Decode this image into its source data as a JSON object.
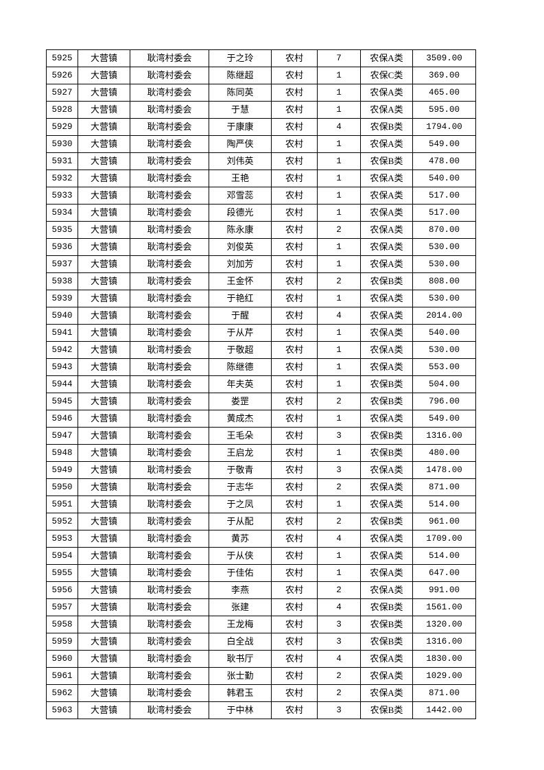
{
  "table": {
    "rows": [
      [
        "5925",
        "大营镇",
        "耿湾村委会",
        "于之玲",
        "农村",
        "7",
        "农保A类",
        "3509.00"
      ],
      [
        "5926",
        "大营镇",
        "耿湾村委会",
        "陈继超",
        "农村",
        "1",
        "农保C类",
        "369.00"
      ],
      [
        "5927",
        "大营镇",
        "耿湾村委会",
        "陈同英",
        "农村",
        "1",
        "农保A类",
        "465.00"
      ],
      [
        "5928",
        "大营镇",
        "耿湾村委会",
        "于慧",
        "农村",
        "1",
        "农保A类",
        "595.00"
      ],
      [
        "5929",
        "大营镇",
        "耿湾村委会",
        "于康康",
        "农村",
        "4",
        "农保B类",
        "1794.00"
      ],
      [
        "5930",
        "大营镇",
        "耿湾村委会",
        "陶严侠",
        "农村",
        "1",
        "农保A类",
        "549.00"
      ],
      [
        "5931",
        "大营镇",
        "耿湾村委会",
        "刘伟英",
        "农村",
        "1",
        "农保B类",
        "478.00"
      ],
      [
        "5932",
        "大营镇",
        "耿湾村委会",
        "王艳",
        "农村",
        "1",
        "农保A类",
        "540.00"
      ],
      [
        "5933",
        "大营镇",
        "耿湾村委会",
        "邓雪蕊",
        "农村",
        "1",
        "农保A类",
        "517.00"
      ],
      [
        "5934",
        "大营镇",
        "耿湾村委会",
        "段德光",
        "农村",
        "1",
        "农保A类",
        "517.00"
      ],
      [
        "5935",
        "大营镇",
        "耿湾村委会",
        "陈永康",
        "农村",
        "2",
        "农保A类",
        "870.00"
      ],
      [
        "5936",
        "大营镇",
        "耿湾村委会",
        "刘俊英",
        "农村",
        "1",
        "农保A类",
        "530.00"
      ],
      [
        "5937",
        "大营镇",
        "耿湾村委会",
        "刘加芳",
        "农村",
        "1",
        "农保A类",
        "530.00"
      ],
      [
        "5938",
        "大营镇",
        "耿湾村委会",
        "王金怀",
        "农村",
        "2",
        "农保B类",
        "808.00"
      ],
      [
        "5939",
        "大营镇",
        "耿湾村委会",
        "于艳红",
        "农村",
        "1",
        "农保A类",
        "530.00"
      ],
      [
        "5940",
        "大营镇",
        "耿湾村委会",
        "于醒",
        "农村",
        "4",
        "农保A类",
        "2014.00"
      ],
      [
        "5941",
        "大营镇",
        "耿湾村委会",
        "于从芹",
        "农村",
        "1",
        "农保A类",
        "540.00"
      ],
      [
        "5942",
        "大营镇",
        "耿湾村委会",
        "于敬超",
        "农村",
        "1",
        "农保A类",
        "530.00"
      ],
      [
        "5943",
        "大营镇",
        "耿湾村委会",
        "陈继德",
        "农村",
        "1",
        "农保A类",
        "553.00"
      ],
      [
        "5944",
        "大营镇",
        "耿湾村委会",
        "年夫英",
        "农村",
        "1",
        "农保B类",
        "504.00"
      ],
      [
        "5945",
        "大营镇",
        "耿湾村委会",
        "娄罡",
        "农村",
        "2",
        "农保B类",
        "796.00"
      ],
      [
        "5946",
        "大营镇",
        "耿湾村委会",
        "黄成杰",
        "农村",
        "1",
        "农保A类",
        "549.00"
      ],
      [
        "5947",
        "大营镇",
        "耿湾村委会",
        "王毛朵",
        "农村",
        "3",
        "农保B类",
        "1316.00"
      ],
      [
        "5948",
        "大营镇",
        "耿湾村委会",
        "王启龙",
        "农村",
        "1",
        "农保B类",
        "480.00"
      ],
      [
        "5949",
        "大营镇",
        "耿湾村委会",
        "于敬青",
        "农村",
        "3",
        "农保A类",
        "1478.00"
      ],
      [
        "5950",
        "大营镇",
        "耿湾村委会",
        "于志华",
        "农村",
        "2",
        "农保A类",
        "871.00"
      ],
      [
        "5951",
        "大营镇",
        "耿湾村委会",
        "于之凤",
        "农村",
        "1",
        "农保A类",
        "514.00"
      ],
      [
        "5952",
        "大营镇",
        "耿湾村委会",
        "于从配",
        "农村",
        "2",
        "农保B类",
        "961.00"
      ],
      [
        "5953",
        "大营镇",
        "耿湾村委会",
        "黄苏",
        "农村",
        "4",
        "农保A类",
        "1709.00"
      ],
      [
        "5954",
        "大营镇",
        "耿湾村委会",
        "于从侠",
        "农村",
        "1",
        "农保A类",
        "514.00"
      ],
      [
        "5955",
        "大营镇",
        "耿湾村委会",
        "于佳佑",
        "农村",
        "1",
        "农保A类",
        "647.00"
      ],
      [
        "5956",
        "大营镇",
        "耿湾村委会",
        "李燕",
        "农村",
        "2",
        "农保A类",
        "991.00"
      ],
      [
        "5957",
        "大营镇",
        "耿湾村委会",
        "张建",
        "农村",
        "4",
        "农保B类",
        "1561.00"
      ],
      [
        "5958",
        "大营镇",
        "耿湾村委会",
        "王龙梅",
        "农村",
        "3",
        "农保B类",
        "1320.00"
      ],
      [
        "5959",
        "大营镇",
        "耿湾村委会",
        "白全战",
        "农村",
        "3",
        "农保B类",
        "1316.00"
      ],
      [
        "5960",
        "大营镇",
        "耿湾村委会",
        "耿书厅",
        "农村",
        "4",
        "农保A类",
        "1830.00"
      ],
      [
        "5961",
        "大营镇",
        "耿湾村委会",
        "张士勤",
        "农村",
        "2",
        "农保A类",
        "1029.00"
      ],
      [
        "5962",
        "大营镇",
        "耿湾村委会",
        "韩君玉",
        "农村",
        "2",
        "农保A类",
        "871.00"
      ],
      [
        "5963",
        "大营镇",
        "耿湾村委会",
        "于中林",
        "农村",
        "3",
        "农保B类",
        "1442.00"
      ]
    ]
  }
}
